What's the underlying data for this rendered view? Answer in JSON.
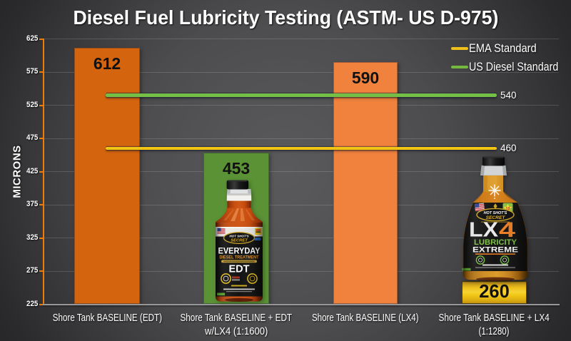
{
  "chart_data": {
    "type": "bar",
    "title": "Diesel Fuel Lubricity Testing (ASTM- US D-975)",
    "ylabel": "MICRONS",
    "ylim": [
      225,
      625
    ],
    "yticks": [
      625,
      575,
      525,
      475,
      425,
      375,
      325,
      275,
      225
    ],
    "grid": "horizontal",
    "legend_position": "top-right",
    "categories": [
      {
        "label_lines": [
          "Shore Tank BASELINE (EDT)"
        ],
        "value": 612,
        "color": "#d5640f",
        "style": "orange-dark"
      },
      {
        "label_lines": [
          "Shore Tank BASELINE + EDT",
          "w/LX4 (1:1600)"
        ],
        "value": 453,
        "color": "#5b9236",
        "style": "green"
      },
      {
        "label_lines": [
          "Shore Tank BASELINE (LX4)"
        ],
        "value": 590,
        "color": "#f0823e",
        "style": "orange-light"
      },
      {
        "label_lines": [
          "Shore Tank BASELINE + LX4",
          "(1:1280)"
        ],
        "value": 260,
        "color": "#f2c715",
        "style": "gold"
      }
    ],
    "ref_lines": [
      {
        "name": "US Diesel Standard",
        "value": 540,
        "label": "540",
        "color": "#74c046"
      },
      {
        "name": "EMA Standard",
        "value": 460,
        "label": "460",
        "color": "#f2c512"
      }
    ],
    "legend": [
      {
        "label": "EMA Standard",
        "color": "#efc01a"
      },
      {
        "label": "US Diesel Standard",
        "color": "#74b83e"
      }
    ]
  },
  "bottles": {
    "edt": {
      "brand_top": "HOT SHOT'S",
      "brand_bottom": "SECRET",
      "product_line1": "EVERYDAY",
      "product_line2": "DIESEL TREATMENT",
      "product_line3": "EDT"
    },
    "lx4": {
      "brand_top": "HOT SHOT'S",
      "brand_bottom": "SECRET",
      "product_name_lx": "LX",
      "product_name_4": "4",
      "product_line1": "LUBRICITY",
      "product_line2": "EXTREME",
      "badge": "10"
    }
  }
}
